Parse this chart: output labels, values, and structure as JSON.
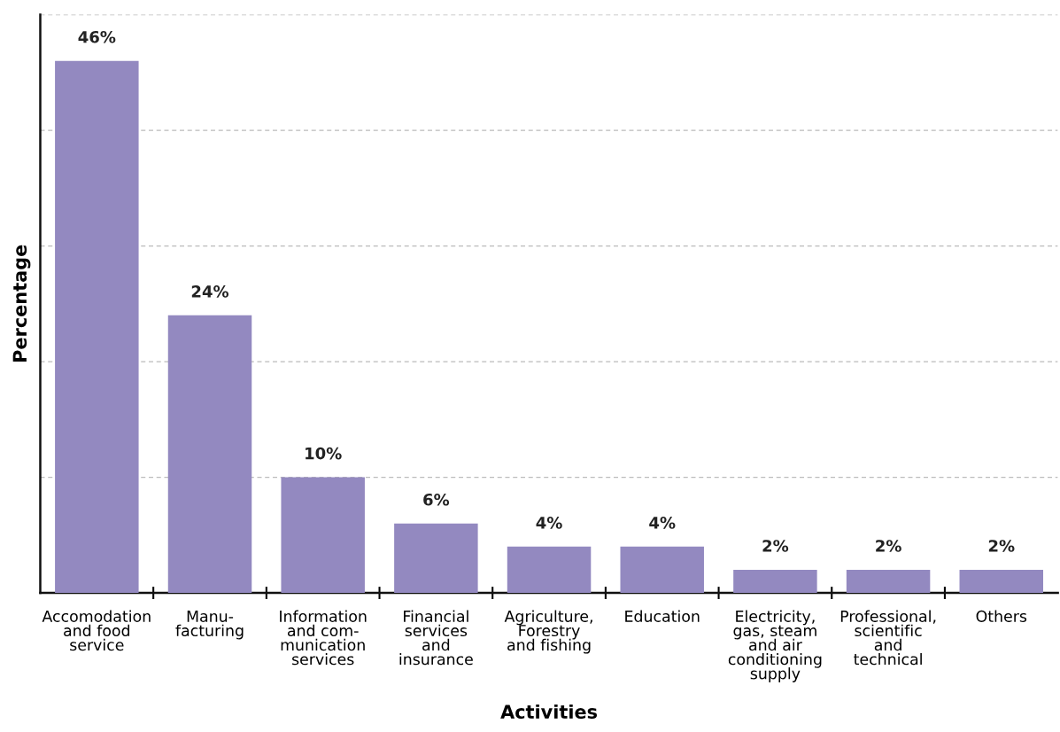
{
  "chart_data": {
    "type": "bar",
    "xlabel": "Activities",
    "ylabel": "Percentage",
    "categories": [
      "Accomodation\nand food\nservice",
      "Manu-\nfacturing",
      "Information\nand com-\nmunication\nservices",
      "Financial\nservices\nand\ninsurance",
      "Agriculture,\nForestry\nand fishing",
      "Education",
      "Electricity,\ngas, steam\nand air\nconditioning\nsupply",
      "Professional,\nscientific\nand\ntechnical",
      "Others"
    ],
    "values": [
      46,
      24,
      10,
      6,
      4,
      4,
      2,
      2,
      2
    ],
    "value_labels": [
      "46%",
      "24%",
      "10%",
      "6%",
      "4%",
      "4%",
      "2%",
      "2%",
      "2%"
    ],
    "color": "#9389c0",
    "ylim": [
      0,
      50
    ],
    "yticks": [
      {
        "value": 0,
        "label": null
      },
      {
        "value": 10,
        "label": null
      },
      {
        "value": 20,
        "label": null
      },
      {
        "value": 30,
        "label": null
      },
      {
        "value": 40,
        "label": null
      },
      {
        "value": 50,
        "label": null
      }
    ],
    "grid": "y",
    "tick_labels": "x"
  }
}
